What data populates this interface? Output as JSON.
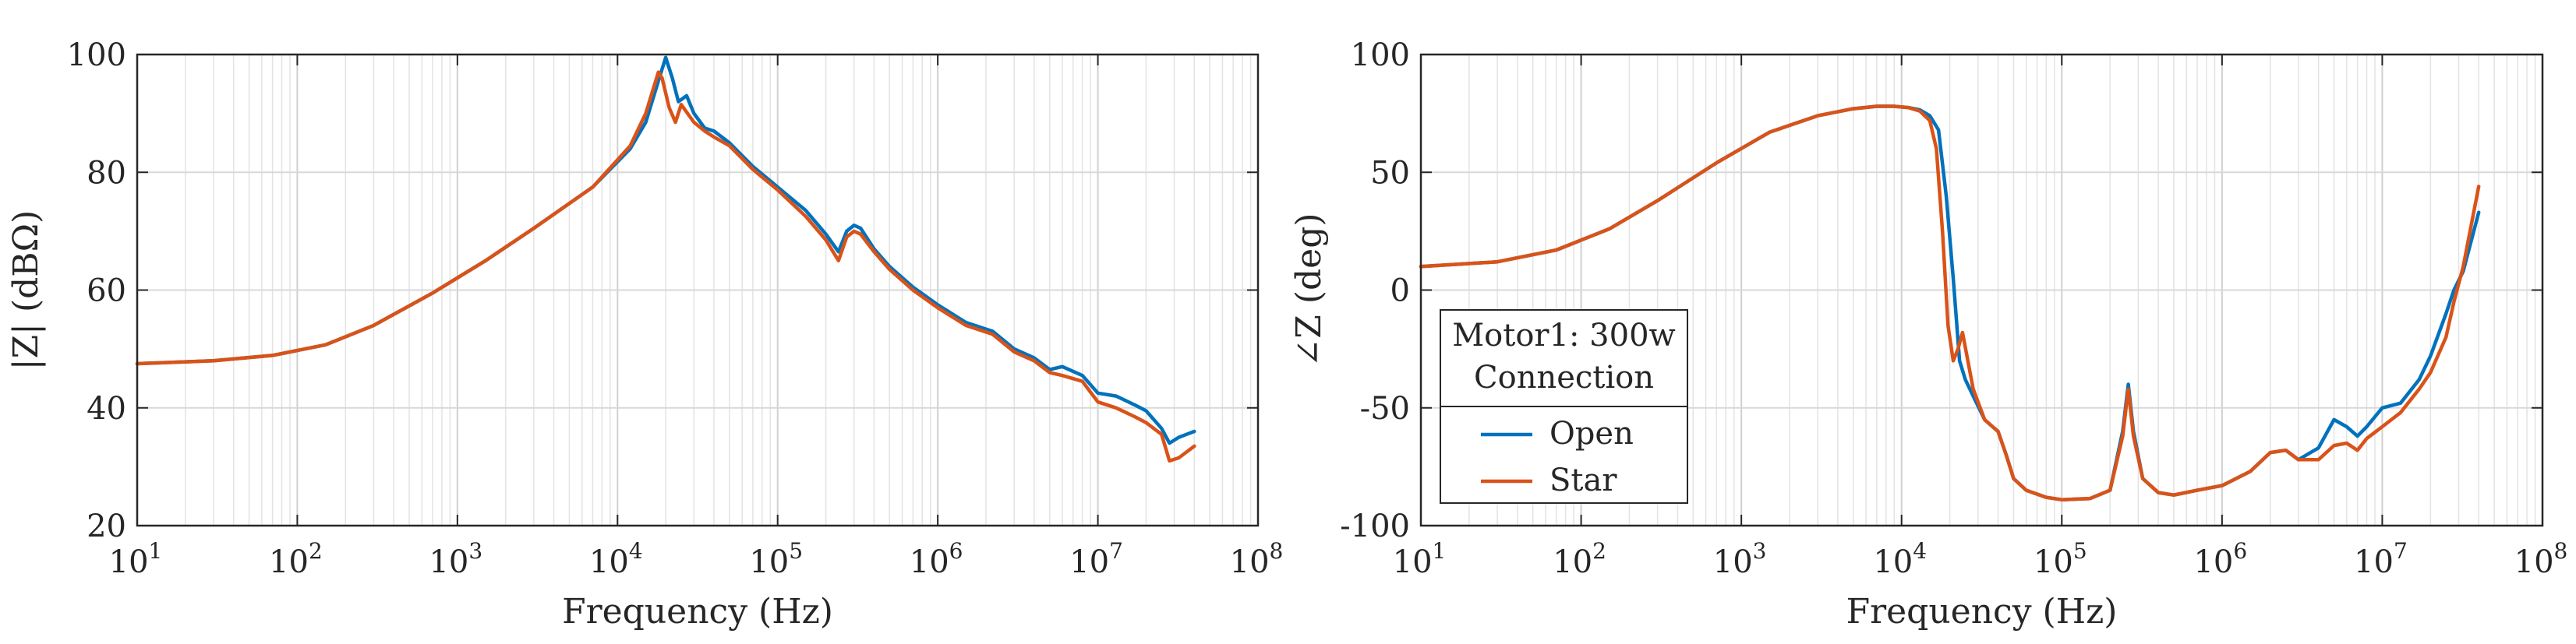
{
  "chart_data": [
    {
      "type": "line",
      "xscale": "log",
      "xlabel": "Frequency (Hz)",
      "ylabel": "|Z| (dBΩ)",
      "xlim": [
        10,
        100000000
      ],
      "ylim": [
        20,
        100
      ],
      "xtick_base": "10",
      "xtick_exponents": [
        "1",
        "2",
        "3",
        "4",
        "5",
        "6",
        "7",
        "8"
      ],
      "yticks": [
        "20",
        "40",
        "60",
        "80",
        "100"
      ],
      "grid": true,
      "legend": null,
      "series": [
        {
          "name": "Open",
          "color": "#0072BD",
          "x": [
            10,
            30,
            70,
            150,
            300,
            700,
            1500,
            3000,
            7000,
            12000,
            15000,
            18000,
            20000,
            22000,
            24000,
            27000,
            30000,
            35000,
            40000,
            50000,
            70000,
            100000,
            150000,
            200000,
            240000,
            270000,
            300000,
            330000,
            400000,
            500000,
            700000,
            1000000,
            1500000,
            2200000,
            3000000,
            4000000,
            5000000,
            6000000,
            8000000,
            10000000,
            13000000,
            17000000,
            20000000,
            25000000,
            28000000,
            32000000,
            40000000
          ],
          "y": [
            47.5,
            48.0,
            48.9,
            50.7,
            54.0,
            59.5,
            65.0,
            70.5,
            77.5,
            84.0,
            88.5,
            95.5,
            99.5,
            96.0,
            92.0,
            93.0,
            90.0,
            87.5,
            87.0,
            85.0,
            81.0,
            77.5,
            73.5,
            69.5,
            66.5,
            70.0,
            71.0,
            70.5,
            67.0,
            64.0,
            60.5,
            57.5,
            54.5,
            53.0,
            50.0,
            48.5,
            46.5,
            47.0,
            45.5,
            42.5,
            42.0,
            40.5,
            39.5,
            36.5,
            34.0,
            35.0,
            36.0
          ]
        },
        {
          "name": "Star",
          "color": "#D95319",
          "x": [
            10,
            30,
            70,
            150,
            300,
            700,
            1500,
            3000,
            7000,
            12000,
            15000,
            18000,
            19000,
            21000,
            23000,
            25000,
            30000,
            35000,
            40000,
            50000,
            70000,
            100000,
            150000,
            200000,
            240000,
            270000,
            300000,
            330000,
            400000,
            500000,
            700000,
            1000000,
            1500000,
            2200000,
            3000000,
            4000000,
            5000000,
            6000000,
            8000000,
            10000000,
            13000000,
            17000000,
            20000000,
            25000000,
            28000000,
            32000000,
            40000000
          ],
          "y": [
            47.5,
            48.0,
            48.9,
            50.7,
            54.0,
            59.5,
            65.0,
            70.5,
            77.5,
            84.5,
            90.0,
            97.0,
            96.0,
            91.0,
            88.5,
            91.5,
            88.5,
            87.0,
            86.0,
            84.5,
            80.5,
            77.0,
            72.5,
            68.5,
            65.0,
            69.0,
            70.0,
            69.5,
            66.5,
            63.5,
            60.0,
            57.0,
            54.0,
            52.5,
            49.5,
            48.0,
            46.0,
            45.5,
            44.5,
            41.0,
            40.0,
            38.5,
            37.5,
            35.5,
            31.0,
            31.5,
            33.5
          ]
        }
      ]
    },
    {
      "type": "line",
      "xscale": "log",
      "xlabel": "Frequency (Hz)",
      "ylabel": "∠Z (deg)",
      "xlim": [
        10,
        100000000
      ],
      "ylim": [
        -100,
        100
      ],
      "xtick_base": "10",
      "xtick_exponents": [
        "1",
        "2",
        "3",
        "4",
        "5",
        "6",
        "7",
        "8"
      ],
      "yticks": [
        "-100",
        "-50",
        "0",
        "50",
        "100"
      ],
      "grid": true,
      "legend": {
        "location": "lower-left",
        "title_lines": [
          "Motor1: 300w",
          "Connection"
        ],
        "entries": [
          "Open",
          "Star"
        ]
      },
      "series": [
        {
          "name": "Open",
          "color": "#0072BD",
          "x": [
            10,
            30,
            70,
            150,
            300,
            700,
            1500,
            3000,
            5000,
            7000,
            9000,
            11000,
            13000,
            15000,
            17000,
            19000,
            21000,
            23000,
            25000,
            28000,
            33000,
            37000,
            40000,
            45000,
            50000,
            60000,
            80000,
            100000,
            150000,
            200000,
            240000,
            260000,
            280000,
            320000,
            400000,
            500000,
            700000,
            1000000,
            1500000,
            2000000,
            2500000,
            3000000,
            4000000,
            5000000,
            6000000,
            7000000,
            8000000,
            10000000,
            13000000,
            17000000,
            20000000,
            25000000,
            28000000,
            32000000,
            40000000
          ],
          "y": [
            10,
            12,
            17,
            26,
            38,
            54,
            67,
            74,
            77,
            78,
            78,
            77.5,
            76.5,
            74,
            68,
            40,
            5,
            -30,
            -38,
            -45,
            -55,
            -58,
            -60,
            -70,
            -80,
            -85,
            -88,
            -89,
            -88.5,
            -85,
            -60,
            -40,
            -60,
            -80,
            -86,
            -87,
            -85,
            -83,
            -77,
            -69,
            -68,
            -72,
            -67,
            -55,
            -58,
            -62,
            -58,
            -50,
            -48,
            -38,
            -28,
            -10,
            0,
            8,
            33
          ]
        },
        {
          "name": "Star",
          "color": "#D95319",
          "x": [
            10,
            30,
            70,
            150,
            300,
            700,
            1500,
            3000,
            5000,
            7000,
            9000,
            11000,
            13000,
            15000,
            16500,
            18000,
            19500,
            21000,
            22500,
            24000,
            28000,
            33000,
            37000,
            40000,
            45000,
            50000,
            60000,
            80000,
            100000,
            150000,
            200000,
            240000,
            260000,
            280000,
            320000,
            400000,
            500000,
            700000,
            1000000,
            1500000,
            2000000,
            2500000,
            3000000,
            4000000,
            5000000,
            6000000,
            7000000,
            8000000,
            10000000,
            13000000,
            17000000,
            20000000,
            25000000,
            28000000,
            32000000,
            40000000
          ],
          "y": [
            10,
            12,
            17,
            26,
            38,
            54,
            67,
            74,
            77,
            78,
            78,
            77.5,
            76,
            72,
            60,
            25,
            -15,
            -30,
            -25,
            -18,
            -42,
            -55,
            -58,
            -60,
            -70,
            -80,
            -85,
            -88,
            -89,
            -88.5,
            -85,
            -62,
            -42,
            -62,
            -80,
            -86,
            -87,
            -85,
            -83,
            -77,
            -69,
            -68,
            -72,
            -72,
            -66,
            -65,
            -68,
            -63,
            -58,
            -52,
            -42,
            -35,
            -20,
            -5,
            10,
            44
          ]
        }
      ]
    }
  ]
}
